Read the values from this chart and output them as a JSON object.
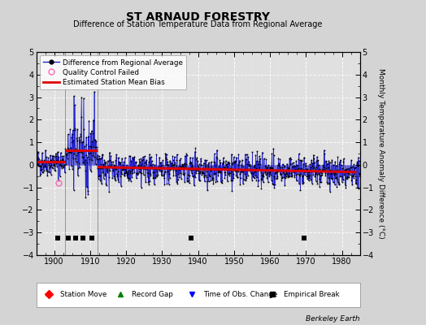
{
  "title": "ST ARNAUD FORESTRY",
  "subtitle": "Difference of Station Temperature Data from Regional Average",
  "ylabel": "Monthly Temperature Anomaly Difference (°C)",
  "xlabel_years": [
    1900,
    1910,
    1920,
    1930,
    1940,
    1950,
    1960,
    1970,
    1980
  ],
  "ylim": [
    -4,
    5
  ],
  "yticks": [
    -4,
    -3,
    -2,
    -1,
    0,
    1,
    2,
    3,
    4,
    5
  ],
  "xlim": [
    1895,
    1985
  ],
  "bg_color": "#d4d4d4",
  "plot_bg_color": "#e0e0e0",
  "line_color": "#2222cc",
  "dot_color": "#000000",
  "bias_color": "#dd0000",
  "qc_color": "#ff69b4",
  "watermark": "Berkeley Earth",
  "empirical_breaks": [
    1901.0,
    1904.0,
    1906.0,
    1908.0,
    1910.5,
    1938.0,
    1969.5
  ],
  "vertical_lines": [
    1903.0,
    1912.0
  ],
  "bias_segments": [
    {
      "x": [
        1895,
        1903
      ],
      "y": [
        0.13,
        0.13
      ]
    },
    {
      "x": [
        1903,
        1912
      ],
      "y": [
        0.65,
        0.65
      ]
    },
    {
      "x": [
        1912,
        1984
      ],
      "y": [
        -0.1,
        -0.32
      ]
    }
  ],
  "qc_points": [
    [
      1901.3,
      -0.78
    ]
  ],
  "seed": 42
}
